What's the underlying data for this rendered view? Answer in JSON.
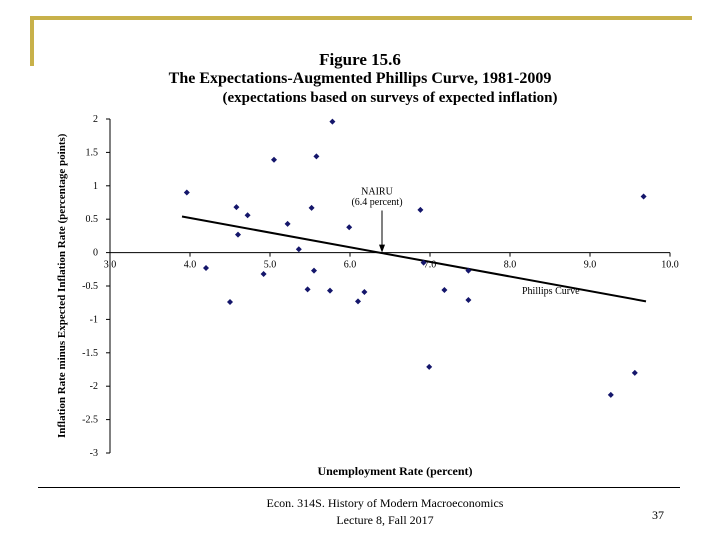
{
  "chart_data": {
    "type": "scatter",
    "title": "Figure 15.6",
    "subtitle": "The Expectations-Augmented  Phillips  Curve, 1981-2009",
    "subtitle2": "(expectations based on surveys of expected inflation)",
    "xlabel": "Unemployment  Rate (percent)",
    "ylabel": "Inflation  Rate minus  Expected Inflation  Rate (percentage points)",
    "xlim": [
      3.0,
      10.0
    ],
    "ylim": [
      -3,
      2
    ],
    "x_ticks": [
      "3.0",
      "4.0",
      "5.0",
      "6.0",
      "7.0",
      "8.0",
      "9.0",
      "10.0"
    ],
    "y_ticks": [
      "2",
      "1.5",
      "1",
      "0.5",
      "0",
      "-0.5",
      "-1",
      "-1.5",
      "-2",
      "-2.5",
      "-3"
    ],
    "grid": false,
    "points": [
      {
        "x": 3.96,
        "y": 0.9
      },
      {
        "x": 4.2,
        "y": -0.23
      },
      {
        "x": 4.5,
        "y": -0.74
      },
      {
        "x": 4.58,
        "y": 0.68
      },
      {
        "x": 4.6,
        "y": 0.27
      },
      {
        "x": 4.72,
        "y": 0.56
      },
      {
        "x": 4.92,
        "y": -0.32
      },
      {
        "x": 5.05,
        "y": 1.39
      },
      {
        "x": 5.22,
        "y": 0.43
      },
      {
        "x": 5.36,
        "y": 0.05
      },
      {
        "x": 5.47,
        "y": -0.55
      },
      {
        "x": 5.52,
        "y": 0.67
      },
      {
        "x": 5.55,
        "y": -0.27
      },
      {
        "x": 5.58,
        "y": 1.44
      },
      {
        "x": 5.75,
        "y": -0.57
      },
      {
        "x": 5.78,
        "y": 1.96
      },
      {
        "x": 5.99,
        "y": 0.38
      },
      {
        "x": 6.1,
        "y": -0.73
      },
      {
        "x": 6.18,
        "y": -0.59
      },
      {
        "x": 6.88,
        "y": 0.64
      },
      {
        "x": 6.92,
        "y": -0.15
      },
      {
        "x": 6.99,
        "y": -1.71
      },
      {
        "x": 7.18,
        "y": -0.56
      },
      {
        "x": 7.48,
        "y": -0.27
      },
      {
        "x": 7.48,
        "y": -0.71
      },
      {
        "x": 9.26,
        "y": -2.13
      },
      {
        "x": 9.56,
        "y": -1.8
      },
      {
        "x": 9.67,
        "y": 0.84
      }
    ],
    "fit_line": {
      "label": "Phillips  Curve",
      "x": [
        3.9,
        9.7
      ],
      "y": [
        0.54,
        -0.73
      ]
    },
    "annotation": {
      "line1": "NAIRU",
      "line2": "(6.4 percent)",
      "x": 6.4
    },
    "colors": {
      "points": "#14166b",
      "line": "#000000"
    }
  },
  "footer": {
    "line1": "Econ. 314S.  History of Modern Macroeconomics",
    "line2": "Lecture 8, Fall 2017",
    "page": "37"
  }
}
